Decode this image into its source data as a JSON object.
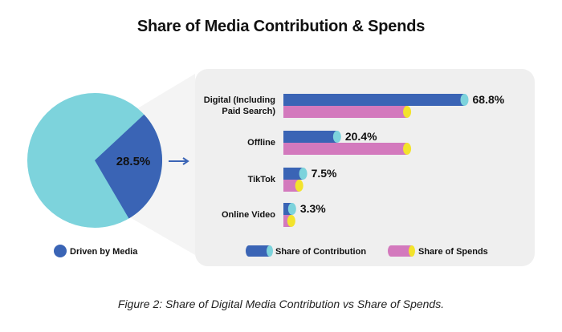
{
  "title": "Share of Media Contribution & Spends",
  "caption": "Figure 2: Share of Digital Media Contribution vs Share of Spends.",
  "colors": {
    "contribution": "#3a64b5",
    "contribution_cap": "#7dd3dc",
    "spends": "#d379bd",
    "spends_cap": "#f3e32c",
    "pie_rest": "#7dd3dc",
    "pie_media": "#3a64b5",
    "panel": "#efefef",
    "arrow": "#3a64b5"
  },
  "chart_data": [
    {
      "type": "pie",
      "slices": [
        {
          "label": "Driven by Media",
          "value": 28.5,
          "display": "28.5%"
        },
        {
          "label": "",
          "value": 71.5,
          "display": ""
        }
      ],
      "legend": [
        "Driven by Media"
      ],
      "legend_position": "bottom"
    },
    {
      "type": "bar",
      "orientation": "horizontal",
      "categories": [
        "Digital (Including Paid Search)",
        "Offline",
        "TikTok",
        "Online Video"
      ],
      "category_lines": [
        [
          "Digital (Including",
          "Paid Search)"
        ],
        [
          "Offline"
        ],
        [
          "TikTok"
        ],
        [
          "Online Video"
        ]
      ],
      "series": [
        {
          "name": "Share of Contribution",
          "values": [
            68.8,
            20.4,
            7.5,
            3.3
          ],
          "labels": [
            "68.8%",
            "20.4%",
            "7.5%",
            "3.3%"
          ]
        },
        {
          "name": "Share of Spends",
          "values": [
            47,
            47,
            6,
            3
          ]
        }
      ],
      "xlim": [
        0,
        72
      ],
      "legend_position": "bottom"
    }
  ]
}
